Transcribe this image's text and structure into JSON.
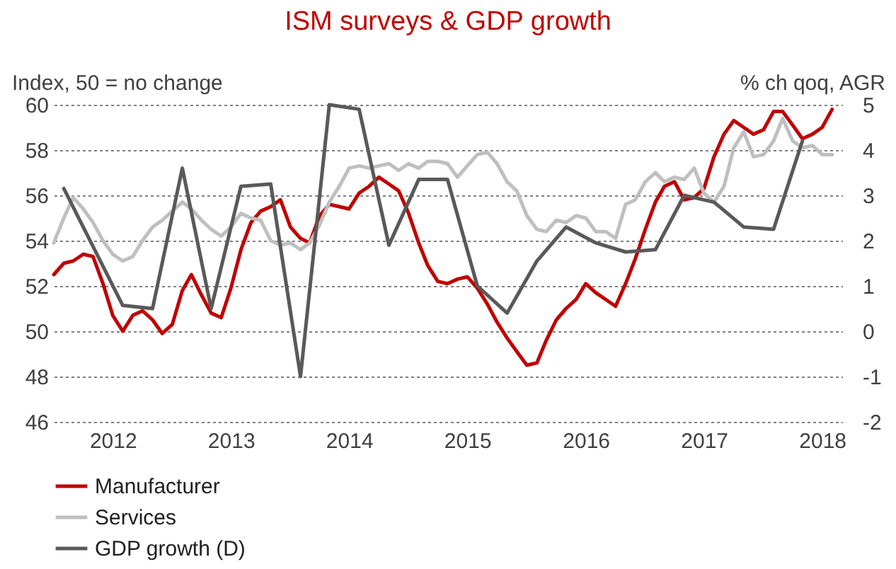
{
  "chart_data": {
    "type": "line",
    "title": "ISM surveys & GDP growth",
    "ylabel": "Index, 50 = no change",
    "y2label": "% ch qoq, AGR",
    "x": [
      "2012-01",
      "2012-02",
      "2012-03",
      "2012-04",
      "2012-05",
      "2012-06",
      "2012-07",
      "2012-08",
      "2012-09",
      "2012-10",
      "2012-11",
      "2012-12",
      "2013-01",
      "2013-02",
      "2013-03",
      "2013-04",
      "2013-05",
      "2013-06",
      "2013-07",
      "2013-08",
      "2013-09",
      "2013-10",
      "2013-11",
      "2013-12",
      "2014-01",
      "2014-02",
      "2014-03",
      "2014-04",
      "2014-05",
      "2014-06",
      "2014-07",
      "2014-08",
      "2014-09",
      "2014-10",
      "2014-11",
      "2014-12",
      "2015-01",
      "2015-02",
      "2015-03",
      "2015-04",
      "2015-05",
      "2015-06",
      "2015-07",
      "2015-08",
      "2015-09",
      "2015-10",
      "2015-11",
      "2015-12",
      "2016-01",
      "2016-02",
      "2016-03",
      "2016-04",
      "2016-05",
      "2016-06",
      "2016-07",
      "2016-08",
      "2016-09",
      "2016-10",
      "2016-11",
      "2016-12",
      "2017-01",
      "2017-02",
      "2017-03",
      "2017-04",
      "2017-05",
      "2017-06",
      "2017-07",
      "2017-08",
      "2017-09",
      "2017-10",
      "2017-11",
      "2017-12",
      "2018-01",
      "2018-02",
      "2018-03",
      "2018-04",
      "2018-05",
      "2018-06",
      "2018-07",
      "2018-08"
    ],
    "series": [
      {
        "name": "Manufacturer",
        "color": "#c00000",
        "values": [
          52.5,
          53.0,
          53.1,
          53.4,
          53.3,
          52.1,
          50.7,
          50.0,
          50.7,
          50.9,
          50.5,
          49.9,
          50.3,
          51.8,
          52.5,
          51.6,
          50.8,
          50.6,
          51.9,
          53.6,
          54.8,
          55.3,
          55.5,
          55.8,
          54.6,
          54.1,
          53.9,
          55.1,
          55.6,
          55.5,
          55.4,
          56.1,
          56.4,
          56.8,
          56.5,
          56.2,
          55.2,
          53.9,
          52.9,
          52.2,
          52.1,
          52.3,
          52.4,
          51.9,
          51.2,
          50.4,
          49.7,
          49.1,
          48.5,
          48.6,
          49.6,
          50.5,
          51.0,
          51.4,
          52.1,
          51.7,
          51.4,
          51.1,
          52.1,
          53.2,
          54.5,
          55.7,
          56.4,
          56.6,
          55.8,
          55.9,
          56.3,
          57.7,
          58.7,
          59.3,
          59.0,
          58.7,
          58.9,
          59.7,
          59.7,
          59.1,
          58.5,
          58.7,
          59.0,
          59.8
        ]
      },
      {
        "name": "Services",
        "color": "#bfbfbf",
        "values": [
          53.9,
          55.0,
          55.9,
          55.4,
          54.8,
          54.0,
          53.4,
          53.1,
          53.3,
          54.0,
          54.6,
          54.9,
          55.3,
          55.7,
          55.4,
          54.9,
          54.5,
          54.2,
          54.6,
          55.2,
          55.0,
          54.9,
          54.0,
          53.8,
          53.9,
          53.6,
          53.9,
          54.7,
          55.7,
          56.4,
          57.2,
          57.3,
          57.2,
          57.3,
          57.4,
          57.1,
          57.4,
          57.2,
          57.5,
          57.5,
          57.4,
          56.8,
          57.3,
          57.8,
          57.9,
          57.4,
          56.6,
          56.2,
          55.1,
          54.5,
          54.4,
          54.9,
          54.8,
          55.1,
          55.0,
          54.4,
          54.4,
          54.1,
          55.6,
          55.8,
          56.6,
          57.0,
          56.6,
          56.8,
          56.7,
          57.2,
          56.1,
          55.7,
          56.4,
          58.1,
          58.8,
          57.7,
          57.8,
          58.4,
          59.4,
          58.4,
          58.1,
          58.2,
          57.8,
          57.8
        ]
      },
      {
        "name": "GDP growth (D)",
        "color": "#595959",
        "axis": "y2",
        "x": [
          "2012-02",
          "2012-08",
          "2012-11",
          "2013-02",
          "2013-05",
          "2013-08",
          "2013-11",
          "2014-02",
          "2014-05",
          "2014-08",
          "2014-11",
          "2015-02",
          "2015-05",
          "2015-08",
          "2015-11",
          "2016-02",
          "2016-05",
          "2016-08",
          "2016-11",
          "2017-02",
          "2017-05",
          "2017-08",
          "2017-11",
          "2018-02",
          "2018-05"
        ],
        "values": [
          3.15,
          0.57,
          0.5,
          3.6,
          0.5,
          3.2,
          3.25,
          -1.0,
          5.0,
          4.9,
          1.9,
          3.35,
          3.35,
          1.0,
          0.4,
          1.55,
          2.3,
          1.95,
          1.75,
          1.8,
          3.0,
          2.85,
          2.3,
          2.25,
          4.2
        ]
      }
    ],
    "xlim": [
      "2012-01",
      "2018-09"
    ],
    "xticks": [
      {
        "value": "2012-07",
        "label": "2012"
      },
      {
        "value": "2013-07",
        "label": "2013"
      },
      {
        "value": "2014-07",
        "label": "2014"
      },
      {
        "value": "2015-07",
        "label": "2015"
      },
      {
        "value": "2016-07",
        "label": "2016"
      },
      {
        "value": "2017-07",
        "label": "2017"
      },
      {
        "value": "2018-07",
        "label": "2018"
      }
    ],
    "ylim": [
      46,
      60
    ],
    "yticks": [
      46,
      48,
      50,
      52,
      54,
      56,
      58,
      60
    ],
    "y2lim": [
      -2,
      5
    ],
    "y2ticks": [
      -2,
      -1,
      0,
      1,
      2,
      3,
      4,
      5
    ],
    "grid": "y",
    "legend": "bottom",
    "line_style": "solid"
  }
}
